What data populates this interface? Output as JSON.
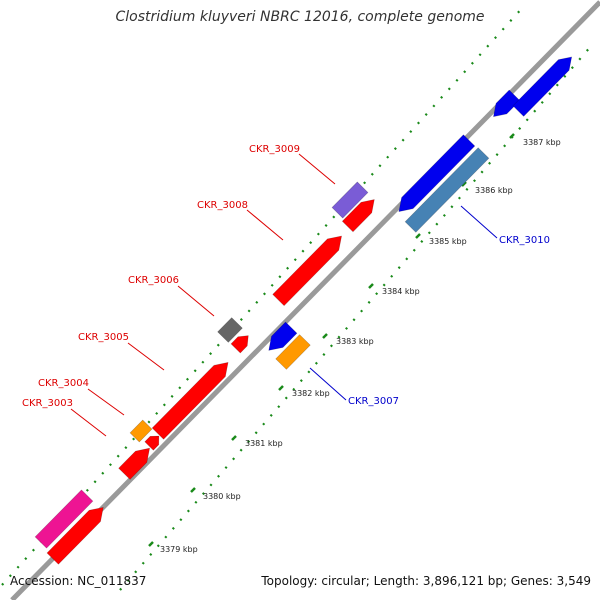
{
  "title": "Clostridium kluyveri NBRC 12016, complete genome",
  "footer": {
    "accession": "Accession: NC_011837",
    "topology": "Topology: circular; Length: 3,896,121 bp; Genes: 3,549"
  },
  "colors": {
    "backbone": "#9a9a9a",
    "dots": "#1a8a1a",
    "red": "#ff0000",
    "blue": "#0000ee",
    "steelblue": "#4682b4",
    "pink": "#ee1493",
    "orange": "#ff9900",
    "gray": "#666666",
    "purple": "#7a5cd6",
    "label_red": "#dd0000",
    "label_blue": "#0000cc"
  },
  "ticks": [
    "3379 kbp",
    "3380 kbp",
    "3381 kbp",
    "3382 kbp",
    "3383 kbp",
    "3384 kbp",
    "3385 kbp",
    "3386 kbp",
    "3387 kbp"
  ],
  "genes": [
    {
      "label": "CKR_3003",
      "color": "red"
    },
    {
      "label": "CKR_3004",
      "color": "orange"
    },
    {
      "label": "CKR_3005",
      "color": "red"
    },
    {
      "label": "CKR_3006",
      "color": "gray"
    },
    {
      "label": "CKR_3007",
      "color": "orange"
    },
    {
      "label": "CKR_3008",
      "color": "red"
    },
    {
      "label": "CKR_3009",
      "color": "purple"
    },
    {
      "label": "CKR_3010",
      "color": "steelblue"
    }
  ]
}
